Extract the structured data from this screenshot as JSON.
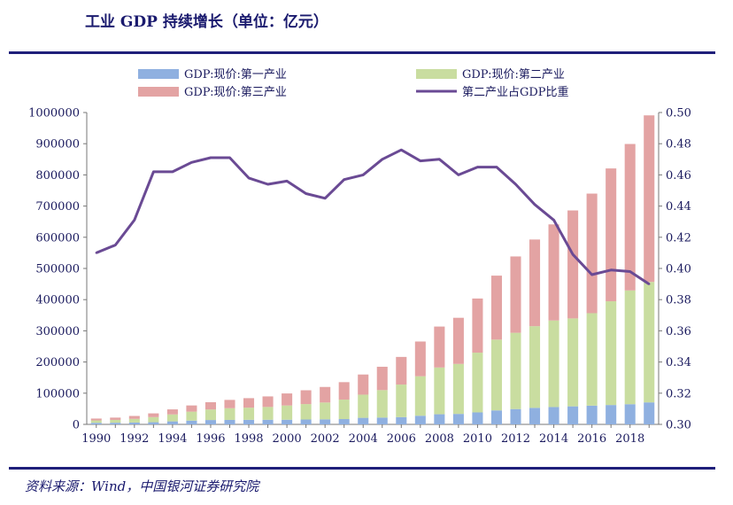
{
  "header": {
    "title": "工业 GDP 持续增长（单位：亿元）"
  },
  "footer": {
    "source": "资料来源：Wind，中国银河证券研究院"
  },
  "colors": {
    "primary": "#8fb0e0",
    "secondary": "#c9dda0",
    "tertiary": "#e3a3a3",
    "line": "#6a4a94",
    "rule": "#1f1f7a",
    "text": "#1a1a5e"
  },
  "chart_data": {
    "type": "bar",
    "stacked": true,
    "categories": [
      1990,
      1991,
      1992,
      1993,
      1994,
      1995,
      1996,
      1997,
      1998,
      1999,
      2000,
      2001,
      2002,
      2003,
      2004,
      2005,
      2006,
      2007,
      2008,
      2009,
      2010,
      2011,
      2012,
      2013,
      2014,
      2015,
      2016,
      2017,
      2018,
      2019
    ],
    "x_tick_labels": [
      "1990",
      "1992",
      "1994",
      "1996",
      "1998",
      "2000",
      "2002",
      "2004",
      "2006",
      "2008",
      "2010",
      "2012",
      "2014",
      "2016",
      "2018"
    ],
    "series": [
      {
        "name": "GDP:现价:第一产业",
        "axis": "left",
        "values": [
          5000,
          5300,
          5900,
          6900,
          9600,
          12100,
          14000,
          14300,
          14600,
          14800,
          14900,
          15600,
          16200,
          17000,
          21000,
          21800,
          23300,
          27700,
          32500,
          33600,
          38400,
          44800,
          49100,
          53000,
          55600,
          57800,
          60100,
          62100,
          64700,
          70500
        ]
      },
      {
        "name": "GDP:现价:第二产业",
        "axis": "left",
        "values": [
          7700,
          9100,
          11700,
          16500,
          22300,
          28700,
          33800,
          37500,
          39000,
          41000,
          45600,
          49500,
          53900,
          62400,
          74300,
          88100,
          104400,
          126600,
          149900,
          160200,
          191600,
          227000,
          244600,
          261900,
          277600,
          282000,
          296500,
          332700,
          364800,
          386200
        ]
      },
      {
        "name": "GDP:现价:第三产业",
        "axis": "left",
        "values": [
          6000,
          7300,
          9400,
          11900,
          16200,
          19900,
          23300,
          26700,
          30500,
          33900,
          38700,
          44300,
          49900,
          56000,
          64600,
          74900,
          88600,
          111400,
          131300,
          148000,
          173600,
          205200,
          244800,
          277900,
          308100,
          346200,
          383400,
          425900,
          469600,
          534200
        ]
      },
      {
        "name": "第二产业占GDP比重",
        "axis": "right",
        "type": "line",
        "values": [
          0.41,
          0.415,
          0.431,
          0.462,
          0.462,
          0.468,
          0.471,
          0.471,
          0.458,
          0.454,
          0.456,
          0.448,
          0.445,
          0.457,
          0.46,
          0.47,
          0.476,
          0.469,
          0.47,
          0.46,
          0.465,
          0.465,
          0.454,
          0.441,
          0.431,
          0.409,
          0.396,
          0.399,
          0.398,
          0.39
        ]
      }
    ],
    "ylim_left": [
      0,
      1000000
    ],
    "yticks_left": [
      "0",
      "100000",
      "200000",
      "300000",
      "400000",
      "500000",
      "600000",
      "700000",
      "800000",
      "900000",
      "1000000"
    ],
    "ylim_right": [
      0.3,
      0.5
    ],
    "yticks_right": [
      "0.30",
      "0.32",
      "0.34",
      "0.36",
      "0.38",
      "0.40",
      "0.42",
      "0.44",
      "0.46",
      "0.48",
      "0.50"
    ],
    "title": "",
    "xlabel": "",
    "ylabel": "",
    "legend_position": "top",
    "grid": false
  }
}
